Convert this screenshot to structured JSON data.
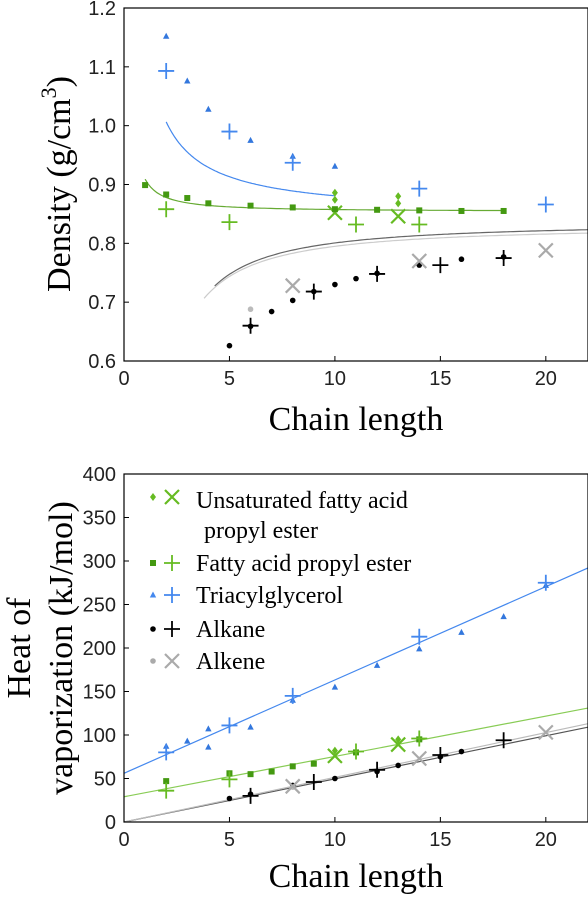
{
  "chart_data": [
    {
      "type": "scatter",
      "xlabel": "Chain length",
      "ylabel": "Density (g/cm³)",
      "ylabel_main": "Density (g/cm",
      "ylabel_sup": "3",
      "ylabel_close": ")",
      "xlim": [
        0,
        22
      ],
      "ylim": [
        0.6,
        1.2
      ],
      "xticks": [
        "0",
        "5",
        "10",
        "15",
        "20"
      ],
      "yticks": [
        "0.6",
        "0.7",
        "0.8",
        "0.9",
        "1.0",
        "1.1",
        "1.2"
      ],
      "grid": false,
      "series": [
        {
          "name": "Unsaturated fatty acid propyl ester",
          "color": "#66bb22",
          "kind": "small",
          "points": [
            [
              10,
              0.874
            ],
            [
              10,
              0.886
            ],
            [
              13,
              0.868
            ],
            [
              13,
              0.88
            ]
          ]
        },
        {
          "name": "Unsaturated fatty acid propyl ester",
          "color": "#66bb22",
          "kind": "large",
          "points": [
            [
              10,
              0.852
            ],
            [
              13,
              0.846
            ]
          ]
        },
        {
          "name": "Fatty acid propyl ester",
          "color": "#449911",
          "kind": "small",
          "points": [
            [
              1,
              0.899
            ],
            [
              2,
              0.883
            ],
            [
              3,
              0.877
            ],
            [
              4,
              0.868
            ],
            [
              6,
              0.864
            ],
            [
              8,
              0.861
            ],
            [
              10,
              0.858
            ],
            [
              12,
              0.857
            ],
            [
              14,
              0.856
            ],
            [
              16,
              0.855
            ],
            [
              18,
              0.855
            ]
          ]
        },
        {
          "name": "Fatty acid propyl ester",
          "color": "#66bb22",
          "kind": "large",
          "points": [
            [
              2,
              0.858
            ],
            [
              5,
              0.836
            ],
            [
              11,
              0.832
            ],
            [
              14,
              0.832
            ]
          ]
        },
        {
          "name": "Triacylglycerol",
          "color": "#3377dd",
          "kind": "small",
          "points": [
            [
              2,
              1.152
            ],
            [
              3,
              1.076
            ],
            [
              4,
              1.028
            ],
            [
              6,
              0.975
            ],
            [
              8,
              0.948
            ],
            [
              10,
              0.931
            ]
          ]
        },
        {
          "name": "Triacylglycerol",
          "color": "#4488ee",
          "kind": "large",
          "points": [
            [
              2,
              1.093
            ],
            [
              5,
              0.99
            ],
            [
              8,
              0.937
            ],
            [
              14,
              0.893
            ],
            [
              20,
              0.866
            ]
          ]
        },
        {
          "name": "Alkane",
          "color": "#000000",
          "kind": "small",
          "points": [
            [
              5,
              0.626
            ],
            [
              6,
              0.659
            ],
            [
              7,
              0.684
            ],
            [
              8,
              0.703
            ],
            [
              9,
              0.718
            ],
            [
              10,
              0.73
            ],
            [
              11,
              0.74
            ],
            [
              12,
              0.749
            ],
            [
              14,
              0.763
            ],
            [
              16,
              0.773
            ],
            [
              18,
              0.777
            ]
          ]
        },
        {
          "name": "Alkane",
          "color": "#000000",
          "kind": "large",
          "points": [
            [
              6,
              0.66
            ],
            [
              9,
              0.718
            ],
            [
              12,
              0.748
            ],
            [
              15,
              0.763
            ],
            [
              18,
              0.775
            ]
          ]
        },
        {
          "name": "Alkene",
          "color": "#bbbbbb",
          "kind": "small",
          "points": [
            [
              6,
              0.688
            ]
          ]
        },
        {
          "name": "Alkene",
          "color": "#aaaaaa",
          "kind": "large",
          "points": [
            [
              8,
              0.728
            ],
            [
              14,
              0.77
            ],
            [
              20,
              0.788
            ]
          ]
        }
      ]
    },
    {
      "type": "scatter",
      "xlabel": "Chain length",
      "ylabel_line1": "Heat of",
      "ylabel_line2": "vaporization (kJ/mol)",
      "xlim": [
        0,
        22
      ],
      "ylim": [
        0,
        400
      ],
      "xticks": [
        "0",
        "5",
        "10",
        "15",
        "20"
      ],
      "yticks": [
        "0",
        "50",
        "100",
        "150",
        "200",
        "250",
        "300",
        "350",
        "400"
      ],
      "grid": false,
      "legend": [
        {
          "label_line1": "Unsaturated fatty acid",
          "label_line2": "propyl ester",
          "color": "#66bb22",
          "small": "diamond",
          "large": "x"
        },
        {
          "label_line1": "Fatty acid propyl ester",
          "color": "#449911",
          "small": "square",
          "large": "plus"
        },
        {
          "label_line1": "Triacylglycerol",
          "color": "#4488ee",
          "small": "triangle",
          "large": "plus"
        },
        {
          "label_line1": "Alkane",
          "color": "#000000",
          "small": "circle",
          "large": "plus"
        },
        {
          "label_line1": "Alkene",
          "color": "#aaaaaa",
          "small": "circle",
          "large": "x"
        }
      ],
      "series": [
        {
          "name": "Unsaturated fatty acid propyl ester",
          "color": "#66bb22",
          "kind": "small",
          "points": [
            [
              10,
              82
            ],
            [
              13,
              95
            ]
          ]
        },
        {
          "name": "Unsaturated fatty acid propyl ester",
          "color": "#66bb22",
          "kind": "large",
          "points": [
            [
              10,
              76
            ],
            [
              13,
              89
            ]
          ]
        },
        {
          "name": "Fatty acid propyl ester",
          "color": "#449911",
          "kind": "small",
          "points": [
            [
              2,
              47
            ],
            [
              5,
              56
            ],
            [
              6,
              55
            ],
            [
              7,
              58
            ],
            [
              8,
              64
            ],
            [
              9,
              67
            ],
            [
              11,
              80
            ],
            [
              14,
              95
            ]
          ]
        },
        {
          "name": "Fatty acid propyl ester",
          "color": "#66bb22",
          "kind": "large",
          "points": [
            [
              2,
              36
            ],
            [
              5,
              49
            ],
            [
              11,
              81
            ],
            [
              14,
              96
            ]
          ]
        },
        {
          "name": "Triacylglycerol",
          "color": "#3377dd",
          "kind": "small",
          "points": [
            [
              2,
              87
            ],
            [
              3,
              93
            ],
            [
              4,
              86
            ],
            [
              4,
              107
            ],
            [
              6,
              109
            ],
            [
              8,
              140
            ],
            [
              10,
              155
            ],
            [
              12,
              180
            ],
            [
              14,
              199
            ],
            [
              16,
              218
            ],
            [
              18,
              236
            ],
            [
              20,
              272
            ]
          ]
        },
        {
          "name": "Triacylglycerol",
          "color": "#4488ee",
          "kind": "large",
          "points": [
            [
              2,
              80
            ],
            [
              5,
              111
            ],
            [
              8,
              145
            ],
            [
              14,
              213
            ],
            [
              20,
              275
            ]
          ]
        },
        {
          "name": "Alkane",
          "color": "#000000",
          "kind": "small",
          "points": [
            [
              5,
              27
            ],
            [
              6,
              32
            ],
            [
              8,
              42
            ],
            [
              10,
              50
            ],
            [
              12,
              58
            ],
            [
              13,
              65
            ],
            [
              15,
              75
            ],
            [
              16,
              81
            ]
          ]
        },
        {
          "name": "Alkane",
          "color": "#000000",
          "kind": "large",
          "points": [
            [
              6,
              30
            ],
            [
              9,
              46
            ],
            [
              12,
              60
            ],
            [
              15,
              77
            ],
            [
              18,
              94
            ]
          ]
        },
        {
          "name": "Alkene",
          "color": "#bbbbbb",
          "kind": "small",
          "points": [
            [
              8,
              40
            ]
          ]
        },
        {
          "name": "Alkene",
          "color": "#aaaaaa",
          "kind": "large",
          "points": [
            [
              8,
              41
            ],
            [
              14,
              73
            ],
            [
              20,
              103
            ]
          ]
        }
      ]
    }
  ]
}
